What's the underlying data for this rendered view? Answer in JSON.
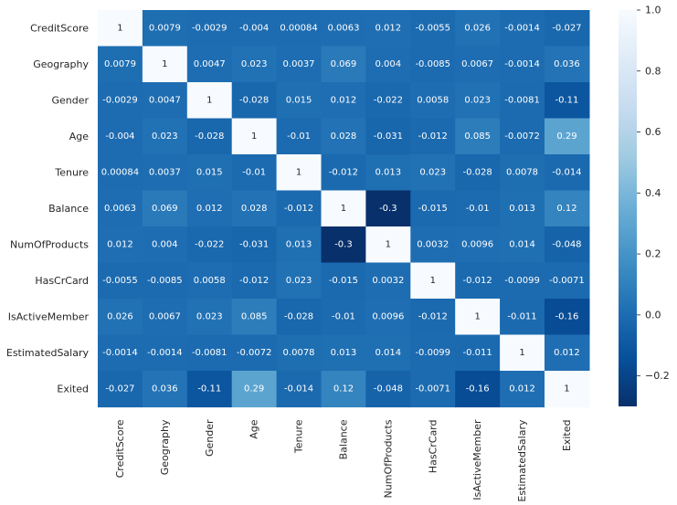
{
  "chart_data": {
    "type": "heatmap",
    "title": "",
    "xlabel": "",
    "ylabel": "",
    "rows": [
      "CreditScore",
      "Geography",
      "Gender",
      "Age",
      "Tenure",
      "Balance",
      "NumOfProducts",
      "HasCrCard",
      "IsActiveMember",
      "EstimatedSalary",
      "Exited"
    ],
    "columns": [
      "CreditScore",
      "Geography",
      "Gender",
      "Age",
      "Tenure",
      "Balance",
      "NumOfProducts",
      "HasCrCard",
      "IsActiveMember",
      "EstimatedSalary",
      "Exited"
    ],
    "values": [
      [
        1,
        0.0079,
        -0.0029,
        -0.004,
        0.00084,
        0.0063,
        0.012,
        -0.0055,
        0.026,
        -0.0014,
        -0.027
      ],
      [
        0.0079,
        1,
        0.0047,
        0.023,
        0.0037,
        0.069,
        0.004,
        -0.0085,
        0.0067,
        -0.0014,
        0.036
      ],
      [
        -0.0029,
        0.0047,
        1,
        -0.028,
        0.015,
        0.012,
        -0.022,
        0.0058,
        0.023,
        -0.0081,
        -0.11
      ],
      [
        -0.004,
        0.023,
        -0.028,
        1,
        -0.01,
        0.028,
        -0.031,
        -0.012,
        0.085,
        -0.0072,
        0.29
      ],
      [
        0.00084,
        0.0037,
        0.015,
        -0.01,
        1,
        -0.012,
        0.013,
        0.023,
        -0.028,
        0.0078,
        -0.014
      ],
      [
        0.0063,
        0.069,
        0.012,
        0.028,
        -0.012,
        1,
        -0.3,
        -0.015,
        -0.01,
        0.013,
        0.12
      ],
      [
        0.012,
        0.004,
        -0.022,
        -0.031,
        0.013,
        -0.3,
        1,
        0.0032,
        0.0096,
        0.014,
        -0.048
      ],
      [
        -0.0055,
        -0.0085,
        0.0058,
        -0.012,
        0.023,
        -0.015,
        0.0032,
        1,
        -0.012,
        -0.0099,
        -0.0071
      ],
      [
        0.026,
        0.0067,
        0.023,
        0.085,
        -0.028,
        -0.01,
        0.0096,
        -0.012,
        1,
        -0.011,
        -0.16
      ],
      [
        -0.0014,
        -0.0014,
        -0.0081,
        -0.0072,
        0.0078,
        0.013,
        0.014,
        -0.0099,
        -0.011,
        1,
        0.012
      ],
      [
        -0.027,
        0.036,
        -0.11,
        0.29,
        -0.014,
        0.12,
        -0.048,
        -0.0071,
        -0.16,
        0.012,
        1
      ]
    ],
    "labels": [
      [
        "1",
        "0.0079",
        "-0.0029",
        "-0.004",
        "0.00084",
        "0.0063",
        "0.012",
        "-0.0055",
        "0.026",
        "-0.0014",
        "-0.027"
      ],
      [
        "0.0079",
        "1",
        "0.0047",
        "0.023",
        "0.0037",
        "0.069",
        "0.004",
        "-0.0085",
        "0.0067",
        "-0.0014",
        "0.036"
      ],
      [
        "-0.0029",
        "0.0047",
        "1",
        "-0.028",
        "0.015",
        "0.012",
        "-0.022",
        "0.0058",
        "0.023",
        "-0.0081",
        "-0.11"
      ],
      [
        "-0.004",
        "0.023",
        "-0.028",
        "1",
        "-0.01",
        "0.028",
        "-0.031",
        "-0.012",
        "0.085",
        "-0.0072",
        "0.29"
      ],
      [
        "0.00084",
        "0.0037",
        "0.015",
        "-0.01",
        "1",
        "-0.012",
        "0.013",
        "0.023",
        "-0.028",
        "0.0078",
        "-0.014"
      ],
      [
        "0.0063",
        "0.069",
        "0.012",
        "0.028",
        "-0.012",
        "1",
        "-0.3",
        "-0.015",
        "-0.01",
        "0.013",
        "0.12"
      ],
      [
        "0.012",
        "0.004",
        "-0.022",
        "-0.031",
        "0.013",
        "-0.3",
        "1",
        "0.0032",
        "0.0096",
        "0.014",
        "-0.048"
      ],
      [
        "-0.0055",
        "-0.0085",
        "0.0058",
        "-0.012",
        "0.023",
        "-0.015",
        "0.0032",
        "1",
        "-0.012",
        "-0.0099",
        "-0.0071"
      ],
      [
        "0.026",
        "0.0067",
        "0.023",
        "0.085",
        "-0.028",
        "-0.01",
        "0.0096",
        "-0.012",
        "1",
        "-0.011",
        "-0.16"
      ],
      [
        "-0.0014",
        "-0.0014",
        "-0.0081",
        "-0.0072",
        "0.0078",
        "0.013",
        "0.014",
        "-0.0099",
        "-0.011",
        "1",
        "0.012"
      ],
      [
        "-0.027",
        "0.036",
        "-0.11",
        "0.29",
        "-0.014",
        "0.12",
        "-0.048",
        "-0.0071",
        "-0.16",
        "0.012",
        "1"
      ]
    ],
    "colormap": "Blues_r",
    "vmin": -0.3,
    "vmax": 1.0,
    "colorbar": {
      "ticks": [
        -0.2,
        0.0,
        0.2,
        0.4,
        0.6,
        0.8,
        1.0
      ],
      "tick_labels": [
        "−0.2",
        "0.0",
        "0.2",
        "0.4",
        "0.6",
        "0.8",
        "1.0"
      ]
    },
    "grid": false,
    "legend": "colorbar-right"
  },
  "colors": {
    "background": "#ffffff",
    "text_dark": "#262626",
    "text_light": "#ffffff"
  }
}
